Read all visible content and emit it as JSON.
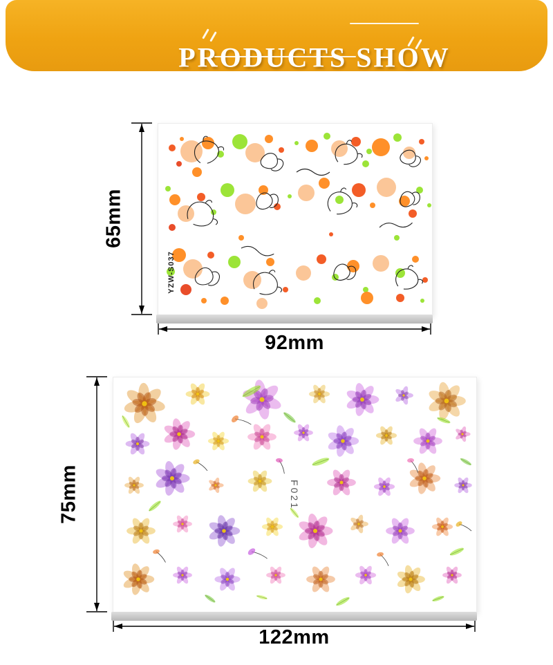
{
  "banner": {
    "title": "PRODUCTS SHOW",
    "background_color": "#EFA312",
    "text_color": "#FFFFFF"
  },
  "products": [
    {
      "name": "splash-paint hand line-art nail sticker sheet",
      "code": "YZW-S037",
      "height_label": "65mm",
      "width_label": "92mm"
    },
    {
      "name": "watercolor flower nail sticker sheet",
      "code": "F021",
      "height_label": "75mm",
      "width_label": "122mm"
    }
  ],
  "colors": {
    "banner_gold": "#EFA312",
    "base_gray": "#C9C9C9",
    "dimension_text": "#000000"
  }
}
